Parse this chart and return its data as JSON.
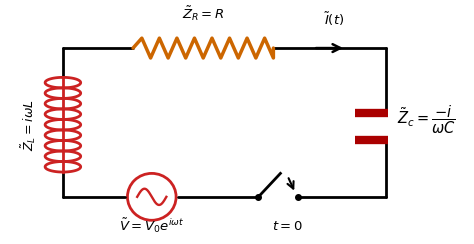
{
  "bg_color": "#ffffff",
  "circuit_color": "#000000",
  "resistor_color": "#cc6600",
  "inductor_color": "#cc2222",
  "capacitor_color": "#aa0000",
  "voltage_source_color": "#cc2222",
  "switch_color": "#000000",
  "arrow_color": "#000000",
  "text_color": "#000000",
  "resistor_label": "$\\tilde{Z}_R = R$",
  "current_label": "$\\tilde{I}(t)$",
  "inductor_label": "$\\tilde{Z}_L = i\\omega L$",
  "capacitor_label": "$\\tilde{Z}_c = \\dfrac{-i}{\\omega C}$",
  "voltage_label": "$\\tilde{V} = V_0 e^{i\\omega t}$",
  "switch_label": "$t = 0$",
  "figsize": [
    4.74,
    2.44
  ],
  "dpi": 100
}
